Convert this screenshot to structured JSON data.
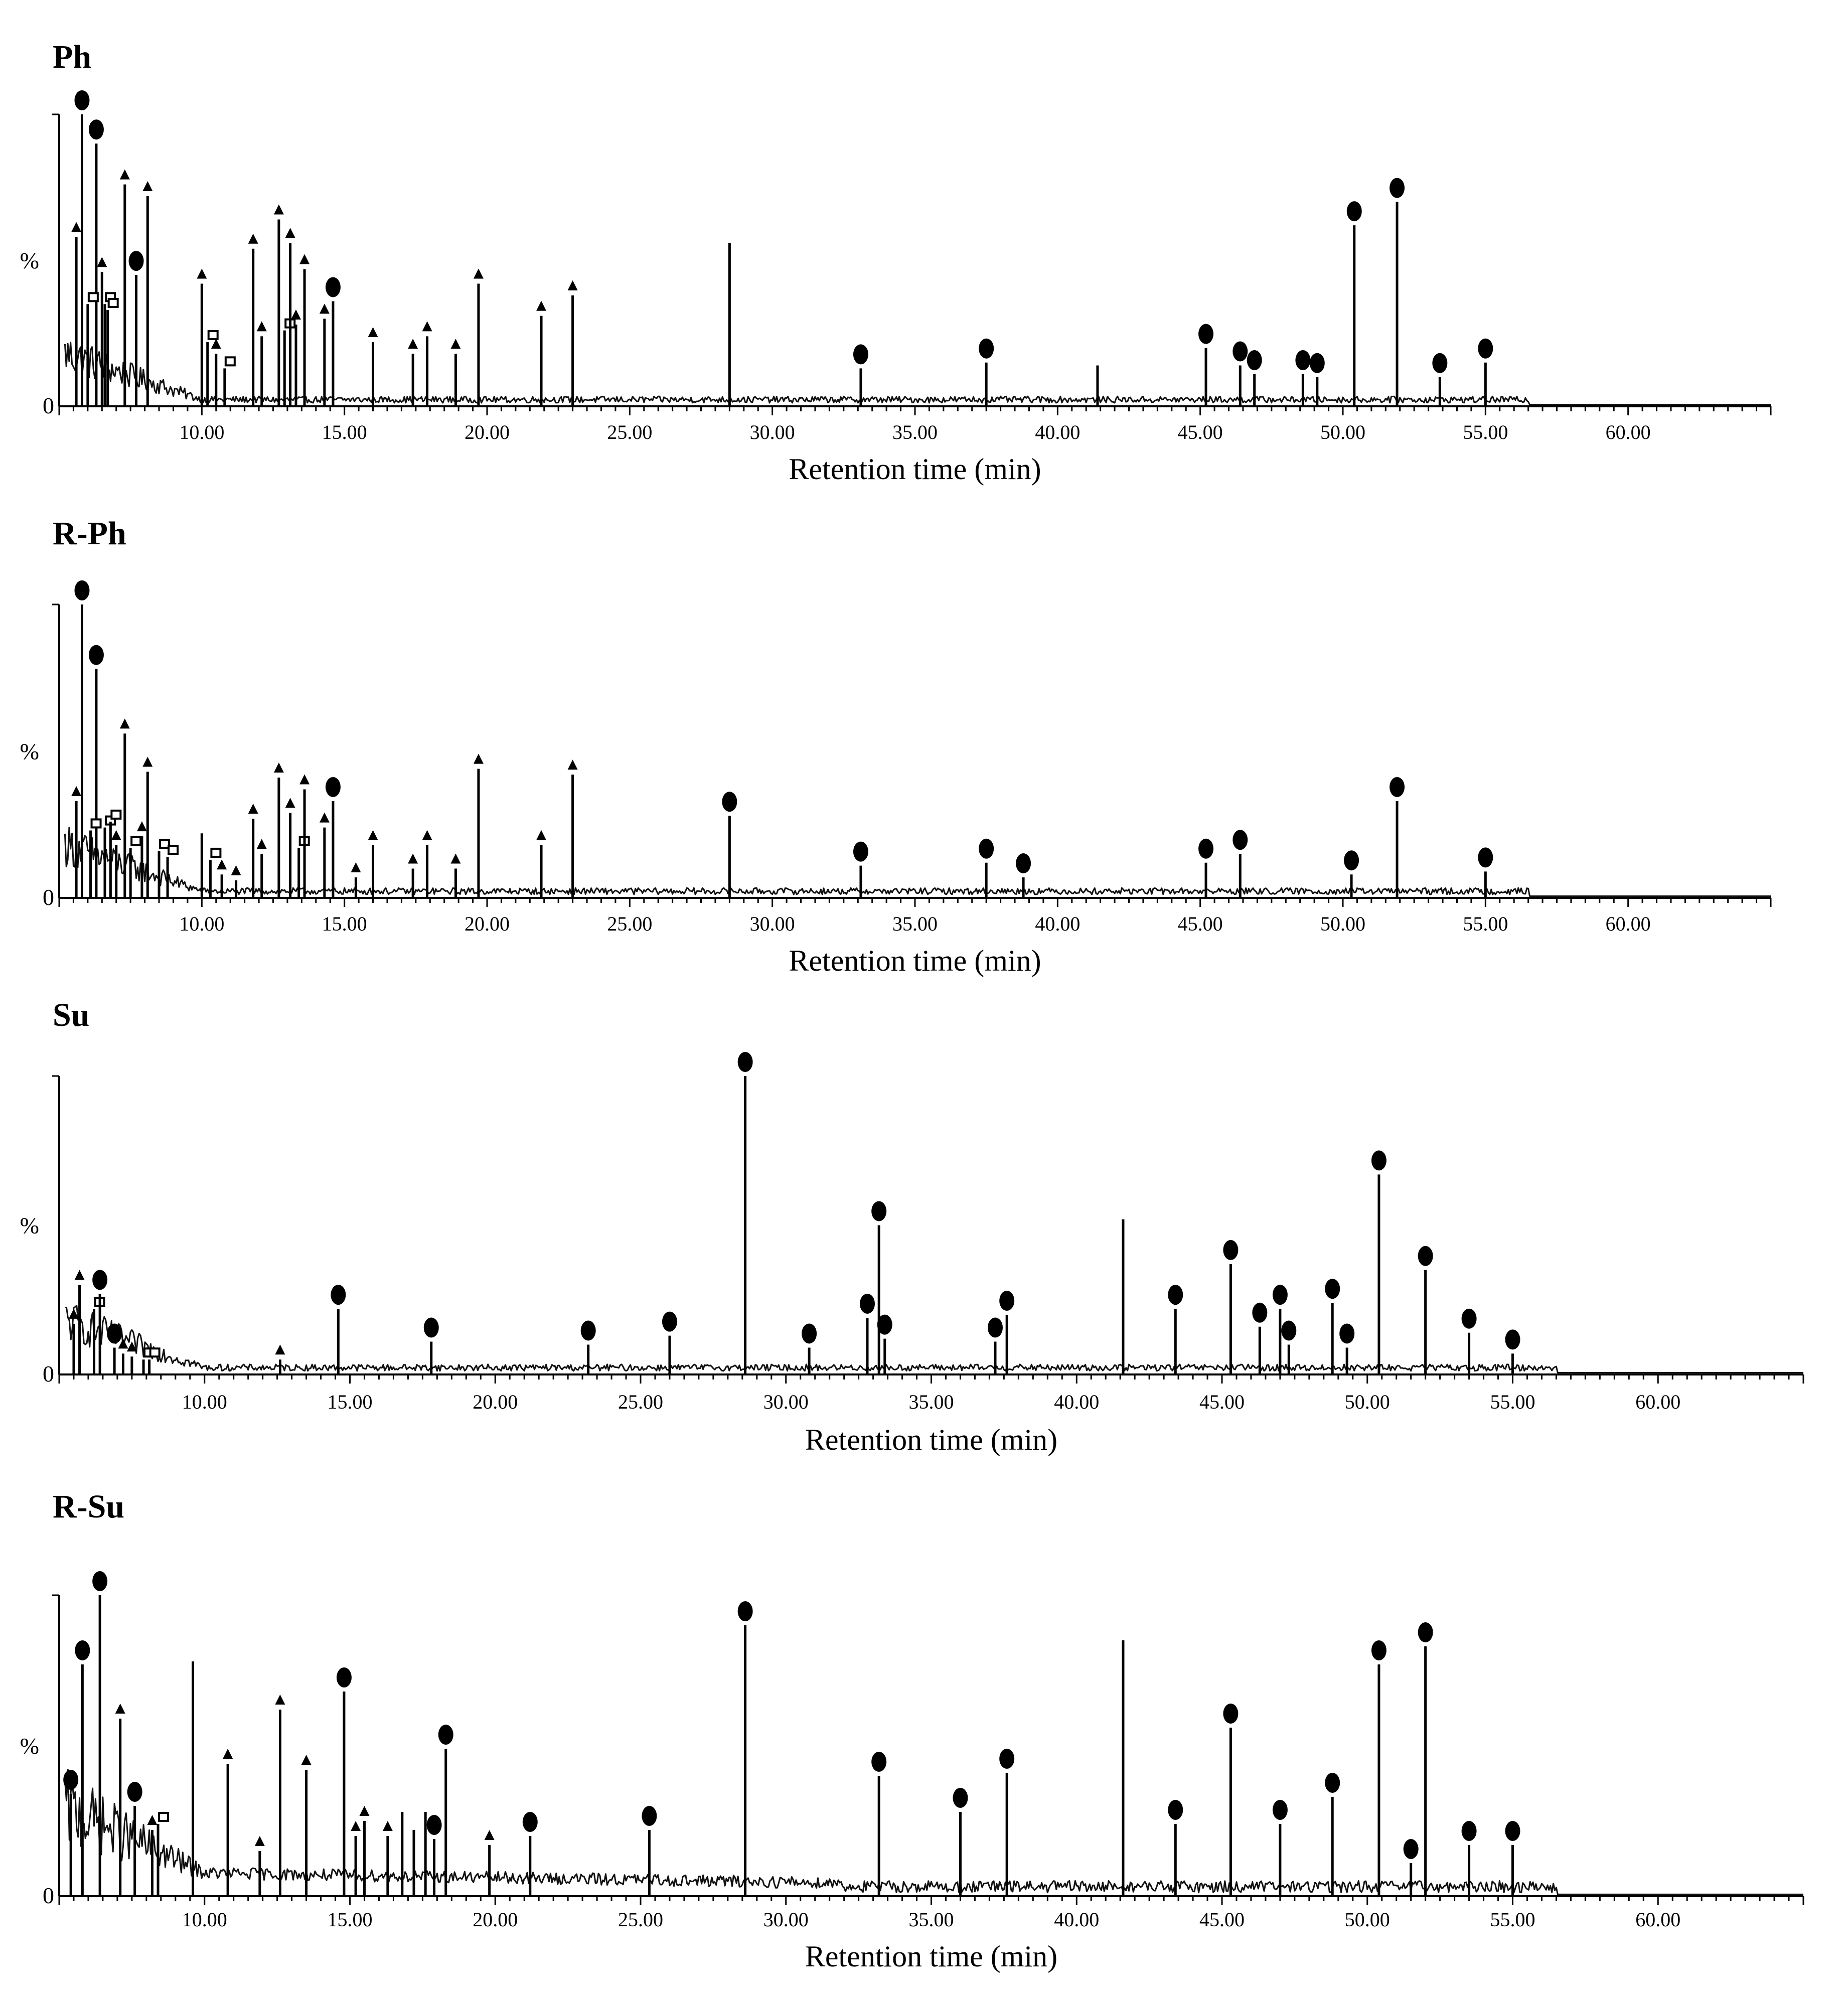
{
  "chart_data": [
    {
      "type": "line",
      "title": "Ph",
      "xlabel": "Retention time (min)",
      "ylabel": "%",
      "xlim": [
        5,
        65
      ],
      "ylim": [
        0,
        100
      ],
      "x_ticks": [
        "10.00",
        "15.00",
        "20.00",
        "25.00",
        "30.00",
        "35.00",
        "40.00",
        "45.00",
        "50.00",
        "55.00",
        "60.00"
      ],
      "y_ticks": [
        "%",
        "0"
      ],
      "legend": "none",
      "peaks": [
        {
          "t": 5.6,
          "h": 58,
          "marker": "triangle"
        },
        {
          "t": 5.8,
          "h": 100,
          "marker": "circle"
        },
        {
          "t": 6.3,
          "h": 90,
          "marker": "circle"
        },
        {
          "t": 6.0,
          "h": 35,
          "marker": "square"
        },
        {
          "t": 6.5,
          "h": 46,
          "marker": "triangle"
        },
        {
          "t": 6.6,
          "h": 35,
          "marker": "square"
        },
        {
          "t": 6.7,
          "h": 33,
          "marker": "square"
        },
        {
          "t": 7.3,
          "h": 76,
          "marker": "triangle"
        },
        {
          "t": 7.7,
          "h": 45,
          "marker": "circle"
        },
        {
          "t": 8.1,
          "h": 72,
          "marker": "triangle"
        },
        {
          "t": 10.0,
          "h": 42,
          "marker": "triangle"
        },
        {
          "t": 10.2,
          "h": 22,
          "marker": "square"
        },
        {
          "t": 10.5,
          "h": 18,
          "marker": "triangle"
        },
        {
          "t": 10.8,
          "h": 13,
          "marker": "square"
        },
        {
          "t": 11.8,
          "h": 54,
          "marker": "triangle"
        },
        {
          "t": 12.1,
          "h": 24,
          "marker": "triangle"
        },
        {
          "t": 12.7,
          "h": 64,
          "marker": "triangle"
        },
        {
          "t": 12.9,
          "h": 26,
          "marker": "square"
        },
        {
          "t": 13.1,
          "h": 56,
          "marker": "triangle"
        },
        {
          "t": 13.3,
          "h": 28,
          "marker": "triangle"
        },
        {
          "t": 13.6,
          "h": 47,
          "marker": "triangle"
        },
        {
          "t": 14.3,
          "h": 30,
          "marker": "triangle"
        },
        {
          "t": 14.6,
          "h": 36,
          "marker": "circle"
        },
        {
          "t": 16.0,
          "h": 22,
          "marker": "triangle"
        },
        {
          "t": 17.4,
          "h": 18,
          "marker": "triangle"
        },
        {
          "t": 17.9,
          "h": 24,
          "marker": "triangle"
        },
        {
          "t": 18.9,
          "h": 18,
          "marker": "triangle"
        },
        {
          "t": 19.7,
          "h": 42,
          "marker": "triangle"
        },
        {
          "t": 21.9,
          "h": 31,
          "marker": "triangle"
        },
        {
          "t": 23.0,
          "h": 38,
          "marker": "triangle"
        },
        {
          "t": 28.5,
          "h": 56,
          "marker": "none"
        },
        {
          "t": 33.1,
          "h": 13,
          "marker": "circle"
        },
        {
          "t": 37.5,
          "h": 15,
          "marker": "circle"
        },
        {
          "t": 41.4,
          "h": 14,
          "marker": "none"
        },
        {
          "t": 45.2,
          "h": 20,
          "marker": "circle"
        },
        {
          "t": 46.4,
          "h": 14,
          "marker": "circle"
        },
        {
          "t": 46.9,
          "h": 11,
          "marker": "circle"
        },
        {
          "t": 48.6,
          "h": 11,
          "marker": "circle"
        },
        {
          "t": 49.1,
          "h": 10,
          "marker": "circle"
        },
        {
          "t": 50.4,
          "h": 62,
          "marker": "circle"
        },
        {
          "t": 51.9,
          "h": 70,
          "marker": "circle"
        },
        {
          "t": 53.4,
          "h": 10,
          "marker": "circle"
        },
        {
          "t": 55.0,
          "h": 15,
          "marker": "circle"
        }
      ]
    },
    {
      "type": "line",
      "title": "R-Ph",
      "xlabel": "Retention time (min)",
      "ylabel": "%",
      "xlim": [
        5,
        65
      ],
      "ylim": [
        0,
        100
      ],
      "x_ticks": [
        "10.00",
        "15.00",
        "20.00",
        "25.00",
        "30.00",
        "35.00",
        "40.00",
        "45.00",
        "50.00",
        "55.00",
        "60.00"
      ],
      "y_ticks": [
        "%",
        "0"
      ],
      "legend": "none",
      "peaks": [
        {
          "t": 5.6,
          "h": 33,
          "marker": "triangle"
        },
        {
          "t": 5.8,
          "h": 100,
          "marker": "circle"
        },
        {
          "t": 6.3,
          "h": 78,
          "marker": "circle"
        },
        {
          "t": 6.1,
          "h": 23,
          "marker": "square"
        },
        {
          "t": 6.6,
          "h": 24,
          "marker": "square"
        },
        {
          "t": 6.8,
          "h": 26,
          "marker": "square"
        },
        {
          "t": 7.0,
          "h": 18,
          "marker": "triangle"
        },
        {
          "t": 7.3,
          "h": 56,
          "marker": "triangle"
        },
        {
          "t": 7.5,
          "h": 17,
          "marker": "square"
        },
        {
          "t": 7.9,
          "h": 21,
          "marker": "triangle"
        },
        {
          "t": 8.1,
          "h": 43,
          "marker": "triangle"
        },
        {
          "t": 8.5,
          "h": 16,
          "marker": "square"
        },
        {
          "t": 8.8,
          "h": 14,
          "marker": "square"
        },
        {
          "t": 10.0,
          "h": 22,
          "marker": "none"
        },
        {
          "t": 10.3,
          "h": 13,
          "marker": "square"
        },
        {
          "t": 10.7,
          "h": 8,
          "marker": "triangle"
        },
        {
          "t": 11.2,
          "h": 6,
          "marker": "triangle"
        },
        {
          "t": 11.8,
          "h": 27,
          "marker": "triangle"
        },
        {
          "t": 12.1,
          "h": 15,
          "marker": "triangle"
        },
        {
          "t": 12.7,
          "h": 41,
          "marker": "triangle"
        },
        {
          "t": 13.1,
          "h": 29,
          "marker": "triangle"
        },
        {
          "t": 13.4,
          "h": 17,
          "marker": "square"
        },
        {
          "t": 13.6,
          "h": 37,
          "marker": "triangle"
        },
        {
          "t": 14.3,
          "h": 24,
          "marker": "triangle"
        },
        {
          "t": 14.6,
          "h": 33,
          "marker": "circle"
        },
        {
          "t": 15.4,
          "h": 7,
          "marker": "triangle"
        },
        {
          "t": 16.0,
          "h": 18,
          "marker": "triangle"
        },
        {
          "t": 17.4,
          "h": 10,
          "marker": "triangle"
        },
        {
          "t": 17.9,
          "h": 18,
          "marker": "triangle"
        },
        {
          "t": 18.9,
          "h": 10,
          "marker": "triangle"
        },
        {
          "t": 19.7,
          "h": 44,
          "marker": "triangle"
        },
        {
          "t": 21.9,
          "h": 18,
          "marker": "triangle"
        },
        {
          "t": 23.0,
          "h": 42,
          "marker": "triangle"
        },
        {
          "t": 28.5,
          "h": 28,
          "marker": "circle"
        },
        {
          "t": 33.1,
          "h": 11,
          "marker": "circle"
        },
        {
          "t": 37.5,
          "h": 12,
          "marker": "circle"
        },
        {
          "t": 38.8,
          "h": 7,
          "marker": "circle"
        },
        {
          "t": 45.2,
          "h": 12,
          "marker": "circle"
        },
        {
          "t": 46.4,
          "h": 15,
          "marker": "circle"
        },
        {
          "t": 50.3,
          "h": 8,
          "marker": "circle"
        },
        {
          "t": 51.9,
          "h": 33,
          "marker": "circle"
        },
        {
          "t": 55.0,
          "h": 9,
          "marker": "circle"
        }
      ]
    },
    {
      "type": "line",
      "title": "Su",
      "xlabel": "Retention time (min)",
      "ylabel": "%",
      "xlim": [
        5,
        65
      ],
      "ylim": [
        0,
        100
      ],
      "x_ticks": [
        "10.00",
        "15.00",
        "20.00",
        "25.00",
        "30.00",
        "35.00",
        "40.00",
        "45.00",
        "50.00",
        "55.00",
        "60.00"
      ],
      "y_ticks": [
        "%",
        "0"
      ],
      "legend": "none",
      "peaks": [
        {
          "t": 5.5,
          "h": 17,
          "marker": "triangle"
        },
        {
          "t": 5.7,
          "h": 30,
          "marker": "triangle"
        },
        {
          "t": 6.2,
          "h": 22,
          "marker": "square"
        },
        {
          "t": 6.4,
          "h": 27,
          "marker": "circle"
        },
        {
          "t": 6.9,
          "h": 9,
          "marker": "circle"
        },
        {
          "t": 7.2,
          "h": 7,
          "marker": "triangle"
        },
        {
          "t": 7.5,
          "h": 6,
          "marker": "triangle"
        },
        {
          "t": 7.9,
          "h": 5,
          "marker": "square"
        },
        {
          "t": 8.1,
          "h": 5,
          "marker": "square"
        },
        {
          "t": 12.6,
          "h": 5,
          "marker": "triangle"
        },
        {
          "t": 14.6,
          "h": 22,
          "marker": "circle"
        },
        {
          "t": 17.8,
          "h": 11,
          "marker": "circle"
        },
        {
          "t": 23.2,
          "h": 10,
          "marker": "circle"
        },
        {
          "t": 26.0,
          "h": 13,
          "marker": "circle"
        },
        {
          "t": 28.6,
          "h": 100,
          "marker": "circle"
        },
        {
          "t": 30.8,
          "h": 9,
          "marker": "circle"
        },
        {
          "t": 32.8,
          "h": 19,
          "marker": "circle"
        },
        {
          "t": 33.2,
          "h": 50,
          "marker": "circle"
        },
        {
          "t": 33.4,
          "h": 12,
          "marker": "circle"
        },
        {
          "t": 37.2,
          "h": 11,
          "marker": "circle"
        },
        {
          "t": 37.6,
          "h": 20,
          "marker": "circle"
        },
        {
          "t": 41.6,
          "h": 52,
          "marker": "none"
        },
        {
          "t": 43.4,
          "h": 22,
          "marker": "circle"
        },
        {
          "t": 45.3,
          "h": 37,
          "marker": "circle"
        },
        {
          "t": 46.3,
          "h": 16,
          "marker": "circle"
        },
        {
          "t": 47.0,
          "h": 22,
          "marker": "circle"
        },
        {
          "t": 47.3,
          "h": 10,
          "marker": "circle"
        },
        {
          "t": 48.8,
          "h": 24,
          "marker": "circle"
        },
        {
          "t": 49.3,
          "h": 9,
          "marker": "circle"
        },
        {
          "t": 50.4,
          "h": 67,
          "marker": "circle"
        },
        {
          "t": 52.0,
          "h": 35,
          "marker": "circle"
        },
        {
          "t": 53.5,
          "h": 14,
          "marker": "circle"
        },
        {
          "t": 55.0,
          "h": 7,
          "marker": "circle"
        }
      ]
    },
    {
      "type": "line",
      "title": "R-Su",
      "xlabel": "Retention time (min)",
      "ylabel": "%",
      "xlim": [
        5,
        65
      ],
      "ylim": [
        0,
        100
      ],
      "x_ticks": [
        "10.00",
        "15.00",
        "20.00",
        "25.00",
        "30.00",
        "35.00",
        "40.00",
        "45.00",
        "50.00",
        "55.00",
        "60.00"
      ],
      "y_ticks": [
        "%",
        "0"
      ],
      "legend": "none",
      "peaks": [
        {
          "t": 5.4,
          "h": 34,
          "marker": "circle"
        },
        {
          "t": 5.8,
          "h": 77,
          "marker": "circle"
        },
        {
          "t": 6.4,
          "h": 100,
          "marker": "circle"
        },
        {
          "t": 7.1,
          "h": 59,
          "marker": "triangle"
        },
        {
          "t": 7.6,
          "h": 30,
          "marker": "circle"
        },
        {
          "t": 8.2,
          "h": 22,
          "marker": "triangle"
        },
        {
          "t": 8.4,
          "h": 24,
          "marker": "square"
        },
        {
          "t": 9.6,
          "h": 78,
          "marker": "none"
        },
        {
          "t": 10.8,
          "h": 44,
          "marker": "triangle"
        },
        {
          "t": 11.9,
          "h": 15,
          "marker": "triangle"
        },
        {
          "t": 12.6,
          "h": 62,
          "marker": "triangle"
        },
        {
          "t": 13.5,
          "h": 42,
          "marker": "triangle"
        },
        {
          "t": 14.8,
          "h": 68,
          "marker": "circle"
        },
        {
          "t": 15.2,
          "h": 20,
          "marker": "triangle"
        },
        {
          "t": 15.5,
          "h": 25,
          "marker": "triangle"
        },
        {
          "t": 16.3,
          "h": 20,
          "marker": "triangle"
        },
        {
          "t": 16.8,
          "h": 28,
          "marker": "none"
        },
        {
          "t": 17.2,
          "h": 22,
          "marker": "none"
        },
        {
          "t": 17.6,
          "h": 28,
          "marker": "none"
        },
        {
          "t": 17.9,
          "h": 19,
          "marker": "circle"
        },
        {
          "t": 18.3,
          "h": 49,
          "marker": "circle"
        },
        {
          "t": 19.8,
          "h": 17,
          "marker": "triangle"
        },
        {
          "t": 21.2,
          "h": 20,
          "marker": "circle"
        },
        {
          "t": 25.3,
          "h": 22,
          "marker": "circle"
        },
        {
          "t": 28.6,
          "h": 90,
          "marker": "circle"
        },
        {
          "t": 33.2,
          "h": 40,
          "marker": "circle"
        },
        {
          "t": 36.0,
          "h": 28,
          "marker": "circle"
        },
        {
          "t": 37.6,
          "h": 41,
          "marker": "circle"
        },
        {
          "t": 41.6,
          "h": 85,
          "marker": "none"
        },
        {
          "t": 43.4,
          "h": 24,
          "marker": "circle"
        },
        {
          "t": 45.3,
          "h": 56,
          "marker": "circle"
        },
        {
          "t": 47.0,
          "h": 24,
          "marker": "circle"
        },
        {
          "t": 48.8,
          "h": 33,
          "marker": "circle"
        },
        {
          "t": 50.4,
          "h": 77,
          "marker": "circle"
        },
        {
          "t": 51.5,
          "h": 11,
          "marker": "circle"
        },
        {
          "t": 52.0,
          "h": 83,
          "marker": "circle"
        },
        {
          "t": 53.5,
          "h": 17,
          "marker": "circle"
        },
        {
          "t": 55.0,
          "h": 17,
          "marker": "circle"
        }
      ]
    }
  ]
}
